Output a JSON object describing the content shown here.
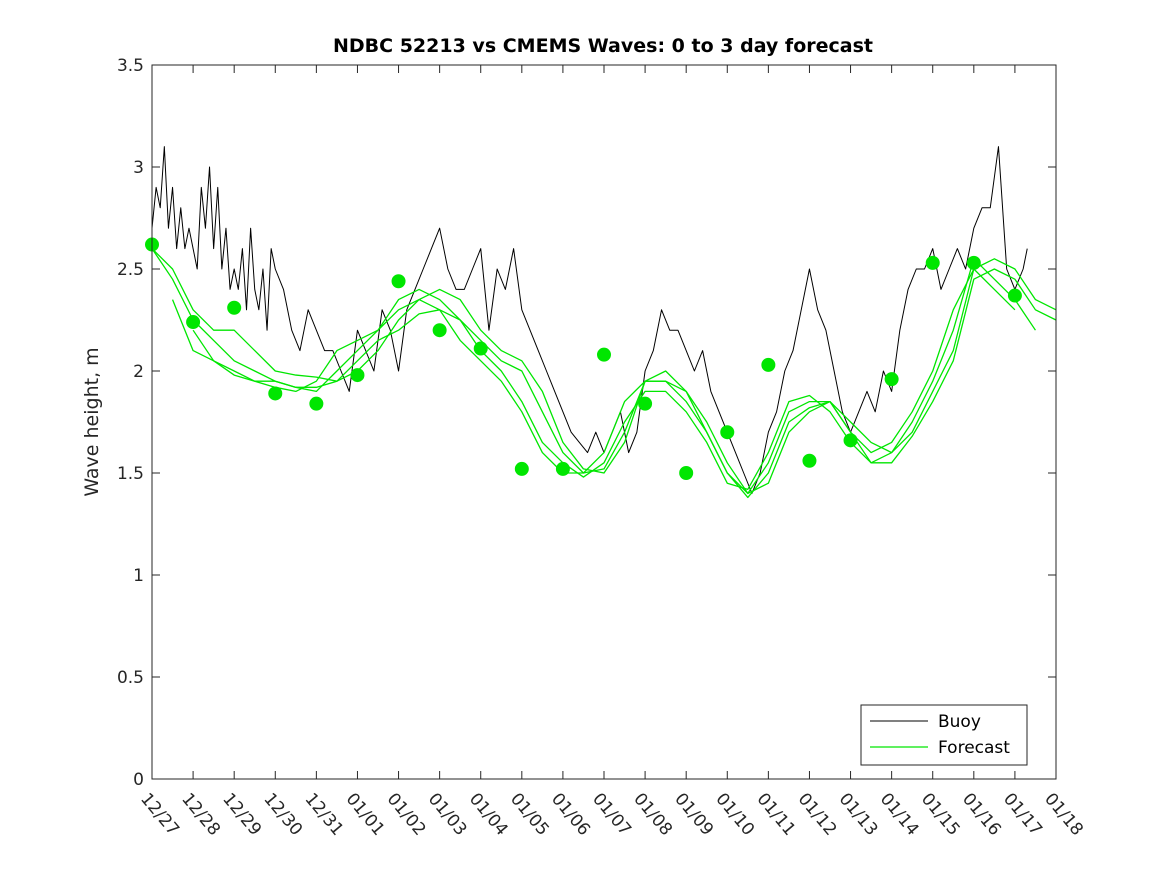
{
  "chart_data": {
    "type": "line",
    "title": "NDBC 52213 vs CMEMS Waves: 0 to 3 day forecast",
    "xlabel": "",
    "ylabel": "Wave height, m",
    "x_tick_labels": [
      "12/27",
      "12/28",
      "12/29",
      "12/30",
      "12/31",
      "01/01",
      "01/02",
      "01/03",
      "01/04",
      "01/05",
      "01/06",
      "01/07",
      "01/08",
      "01/09",
      "01/10",
      "01/11",
      "01/12",
      "01/13",
      "01/14",
      "01/15",
      "01/16",
      "01/17",
      "01/18"
    ],
    "xlim_days": [
      0,
      22
    ],
    "ylim": [
      0,
      3.5
    ],
    "y_ticks": [
      0,
      0.5,
      1,
      1.5,
      2,
      2.5,
      3,
      3.5
    ],
    "y_tick_labels": [
      "0",
      "0.5",
      "1",
      "1.5",
      "2",
      "2.5",
      "3",
      "3.5"
    ],
    "legend": {
      "position": "bottom-right",
      "entries": [
        "Buoy",
        "Forecast"
      ]
    },
    "colors": {
      "buoy": "#000000",
      "forecast": "#00e600",
      "marker": "#00e600"
    },
    "series": [
      {
        "name": "Buoy",
        "x": [
          0,
          0.1,
          0.2,
          0.3,
          0.4,
          0.5,
          0.6,
          0.7,
          0.8,
          0.9,
          1.0,
          1.1,
          1.2,
          1.3,
          1.4,
          1.5,
          1.6,
          1.7,
          1.8,
          1.9,
          2.0,
          2.1,
          2.2,
          2.3,
          2.4,
          2.5,
          2.6,
          2.7,
          2.8,
          2.9,
          3.0,
          3.2,
          3.4,
          3.6,
          3.8,
          4.0,
          4.2,
          4.4,
          4.6,
          4.8,
          5.0,
          5.2,
          5.4,
          5.6,
          5.8,
          6.0,
          6.2,
          6.4,
          6.6,
          6.8,
          7.0,
          7.2,
          7.4,
          7.6,
          7.8,
          8.0,
          8.2,
          8.4,
          8.6,
          8.8,
          9.0,
          9.2,
          9.4,
          9.6,
          9.8,
          10.0,
          10.2,
          10.4,
          10.6,
          10.8,
          11.0,
          11.2,
          11.4,
          11.6,
          11.8,
          12.0,
          12.2,
          12.4,
          12.6,
          12.8,
          13.0,
          13.2,
          13.4,
          13.6,
          13.8,
          14.0,
          14.2,
          14.4,
          14.6,
          14.8,
          15.0,
          15.2,
          15.4,
          15.6,
          15.8,
          16.0,
          16.2,
          16.4,
          16.6,
          16.8,
          17.0,
          17.2,
          17.4,
          17.6,
          17.8,
          18.0,
          18.2,
          18.4,
          18.6,
          18.8,
          19.0,
          19.2,
          19.4,
          19.6,
          19.8,
          20.0,
          20.2,
          20.4,
          20.6,
          20.8,
          21.0,
          21.2,
          21.3
        ],
        "y": [
          2.7,
          2.9,
          2.8,
          3.1,
          2.7,
          2.9,
          2.6,
          2.8,
          2.6,
          2.7,
          2.6,
          2.5,
          2.9,
          2.7,
          3.0,
          2.6,
          2.9,
          2.5,
          2.7,
          2.4,
          2.5,
          2.4,
          2.6,
          2.3,
          2.7,
          2.4,
          2.3,
          2.5,
          2.2,
          2.6,
          2.5,
          2.4,
          2.2,
          2.1,
          2.3,
          2.2,
          2.1,
          2.1,
          2.0,
          1.9,
          2.2,
          2.1,
          2.0,
          2.3,
          2.2,
          2.0,
          2.3,
          2.4,
          2.5,
          2.6,
          2.7,
          2.5,
          2.4,
          2.4,
          2.5,
          2.6,
          2.2,
          2.5,
          2.4,
          2.6,
          2.3,
          2.2,
          2.1,
          2.0,
          1.9,
          1.8,
          1.7,
          1.65,
          1.6,
          1.7,
          1.6,
          1.7,
          1.8,
          1.6,
          1.7,
          2.0,
          2.1,
          2.3,
          2.2,
          2.2,
          2.1,
          2.0,
          2.1,
          1.9,
          1.8,
          1.7,
          1.6,
          1.5,
          1.4,
          1.5,
          1.7,
          1.8,
          2.0,
          2.1,
          2.3,
          2.5,
          2.3,
          2.2,
          2.0,
          1.8,
          1.7,
          1.8,
          1.9,
          1.8,
          2.0,
          1.9,
          2.2,
          2.4,
          2.5,
          2.5,
          2.6,
          2.4,
          2.5,
          2.6,
          2.5,
          2.7,
          2.8,
          2.8,
          3.1,
          2.5,
          2.4,
          2.5,
          2.6
        ]
      },
      {
        "name": "Forecast",
        "x": [
          0,
          0.5,
          1.0,
          1.5,
          2.0,
          2.5,
          3.0,
          3.5,
          4.0,
          4.5,
          5.0,
          5.5,
          6.0,
          6.5,
          7.0,
          7.5,
          8.0,
          8.5,
          9.0,
          9.5,
          10.0,
          10.5,
          11.0,
          11.5,
          12.0,
          12.5,
          13.0,
          13.5,
          14.0,
          14.5,
          15.0,
          15.5,
          16.0,
          16.5,
          17.0,
          17.5,
          18.0,
          18.5,
          19.0,
          19.5,
          20.0,
          20.5,
          21.0,
          21.5,
          22.0
        ],
        "y": [
          2.6,
          2.5,
          2.3,
          2.2,
          2.2,
          2.1,
          2.0,
          1.98,
          1.97,
          1.95,
          2.0,
          2.1,
          2.25,
          2.35,
          2.4,
          2.35,
          2.2,
          2.1,
          2.05,
          1.9,
          1.65,
          1.52,
          1.5,
          1.65,
          1.95,
          2.0,
          1.9,
          1.75,
          1.55,
          1.4,
          1.45,
          1.7,
          1.8,
          1.85,
          1.75,
          1.65,
          1.6,
          1.7,
          1.9,
          2.1,
          2.5,
          2.55,
          2.5,
          2.35,
          2.3
        ]
      },
      {
        "name": "Forecast",
        "x": [
          0,
          0.5,
          1.0,
          1.5,
          2.0,
          2.5,
          3.0,
          3.5,
          4.0,
          4.5,
          5.0,
          5.5,
          6.0,
          6.5,
          7.0,
          7.5,
          8.0,
          8.5,
          9.0,
          9.5,
          10.0,
          10.5,
          11.0,
          11.5,
          12.0,
          12.5,
          13.0,
          13.5,
          14.0,
          14.5,
          15.0,
          15.5,
          16.0,
          16.5,
          17.0,
          17.5,
          18.0,
          18.5,
          19.0,
          19.5,
          20.0,
          20.5,
          21.0,
          21.5,
          22.0
        ],
        "y": [
          2.6,
          2.45,
          2.25,
          2.15,
          2.05,
          2.0,
          1.95,
          1.92,
          1.92,
          1.95,
          2.05,
          2.15,
          2.2,
          2.28,
          2.3,
          2.25,
          2.15,
          2.05,
          2.0,
          1.8,
          1.6,
          1.5,
          1.52,
          1.7,
          1.95,
          1.95,
          1.9,
          1.7,
          1.5,
          1.38,
          1.5,
          1.75,
          1.82,
          1.85,
          1.7,
          1.55,
          1.55,
          1.68,
          1.85,
          2.05,
          2.45,
          2.5,
          2.45,
          2.3,
          2.25
        ]
      },
      {
        "name": "Forecast",
        "x": [
          0.5,
          1.0,
          1.5,
          2.0,
          2.5,
          3.0,
          3.5,
          4.0,
          4.5,
          5.0,
          5.5,
          6.0,
          6.5,
          7.0,
          7.5,
          8.0,
          8.5,
          9.0,
          9.5,
          10.0,
          10.5,
          11.0,
          11.5,
          12.0,
          12.5,
          13.0,
          13.5,
          14.0,
          14.5,
          15.0,
          15.5,
          16.0,
          16.5,
          17.0,
          17.5,
          18.0,
          18.5,
          19.0,
          19.5,
          20.0,
          20.5,
          21.0,
          21.5
        ],
        "y": [
          2.35,
          2.1,
          2.05,
          2.0,
          1.95,
          1.92,
          1.9,
          1.95,
          2.1,
          2.15,
          2.2,
          2.35,
          2.4,
          2.35,
          2.25,
          2.1,
          2.0,
          1.85,
          1.65,
          1.55,
          1.48,
          1.55,
          1.75,
          1.9,
          1.9,
          1.8,
          1.65,
          1.45,
          1.42,
          1.6,
          1.85,
          1.88,
          1.8,
          1.65,
          1.55,
          1.6,
          1.75,
          1.95,
          2.2,
          2.55,
          2.45,
          2.35,
          2.2
        ]
      },
      {
        "name": "Forecast",
        "x": [
          1.0,
          1.5,
          2.0,
          2.5,
          3.0,
          3.5,
          4.0,
          4.5,
          5.0,
          5.5,
          6.0,
          6.5,
          7.0,
          7.5,
          8.0,
          8.5,
          9.0,
          9.5,
          10.0,
          10.5,
          11.0,
          11.5,
          12.0,
          12.5,
          13.0,
          13.5,
          14.0,
          14.5,
          15.0,
          15.5,
          16.0,
          16.5,
          17.0,
          17.5,
          18.0,
          18.5,
          19.0,
          19.5,
          20.0,
          20.5,
          21.0
        ],
        "y": [
          2.2,
          2.05,
          1.98,
          1.95,
          1.95,
          1.92,
          1.9,
          2.0,
          2.1,
          2.2,
          2.3,
          2.35,
          2.3,
          2.15,
          2.05,
          1.95,
          1.8,
          1.6,
          1.5,
          1.5,
          1.6,
          1.85,
          1.95,
          1.95,
          1.85,
          1.7,
          1.5,
          1.4,
          1.55,
          1.8,
          1.85,
          1.85,
          1.7,
          1.6,
          1.65,
          1.8,
          2.0,
          2.3,
          2.5,
          2.4,
          2.3
        ]
      }
    ],
    "markers": {
      "name": "Forecast",
      "x": [
        0,
        1,
        2,
        3,
        4,
        5,
        6,
        7,
        8,
        9,
        10,
        11,
        12,
        13,
        14,
        15,
        16,
        17,
        18,
        19,
        20,
        21
      ],
      "y": [
        2.62,
        2.24,
        2.31,
        1.89,
        1.84,
        1.98,
        2.44,
        2.2,
        2.11,
        1.52,
        1.52,
        2.08,
        1.84,
        1.5,
        1.7,
        2.03,
        1.56,
        1.66,
        1.96,
        2.53,
        2.53,
        2.37
      ]
    }
  }
}
